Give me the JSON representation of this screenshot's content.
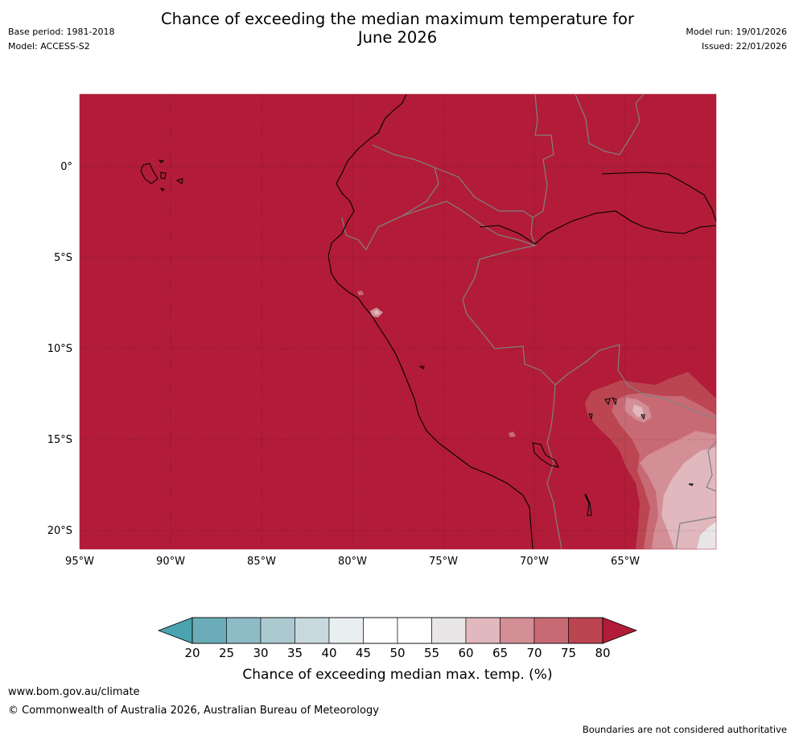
{
  "header": {
    "title_line1": "Chance of exceeding the median maximum temperature for",
    "title_line2": "June 2026",
    "base_period": "Base period: 1981-2018",
    "model": "Model: ACCESS-S2",
    "model_run": "Model run: 19/01/2026",
    "issued": "Issued: 22/01/2026"
  },
  "map": {
    "lat_labels": [
      "0°",
      "5°S",
      "10°S",
      "15°S",
      "20°S"
    ],
    "lon_labels": [
      "95°W",
      "90°W",
      "85°W",
      "80°W",
      "75°W",
      "70°W",
      "65°W"
    ],
    "dominant_color": "#b21c38"
  },
  "colorbar": {
    "ticks": [
      "20",
      "25",
      "30",
      "35",
      "40",
      "45",
      "50",
      "55",
      "60",
      "65",
      "70",
      "75",
      "80"
    ],
    "colors": [
      "#6aadb8",
      "#8dbbc6",
      "#abc9cf",
      "#c8d9dd",
      "#e9eef0",
      "#ffffff",
      "#ffffff",
      "#e8e6e7",
      "#e0b8bd",
      "#d38e96",
      "#c86a74",
      "#bc4552"
    ],
    "low_color": "#4aa3ae",
    "high_color": "#b21c38",
    "title": "Chance of exceeding median max. temp. (%)"
  },
  "footer": {
    "website": "www.bom.gov.au/climate",
    "copyright": "© Commonwealth of Australia 2026, Australian Bureau of Meteorology",
    "note": "Boundaries are not considered authoritative"
  }
}
